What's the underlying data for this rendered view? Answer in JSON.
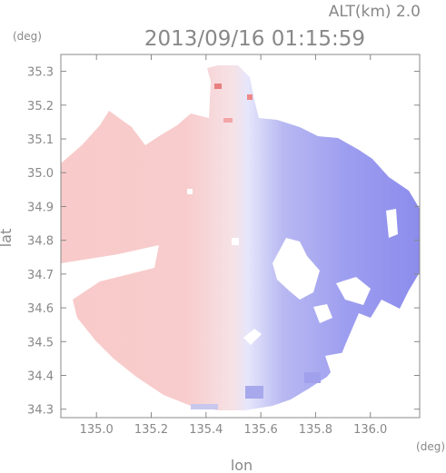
{
  "header": {
    "altitude_label": "ALT(km) 2.0",
    "timestamp": "2013/09/16 01:15:59"
  },
  "axes": {
    "y_unit": "(deg)",
    "x_unit": "(deg)",
    "xlabel": "lon",
    "ylabel": "lat",
    "x_ticks": [
      "135.0",
      "135.2",
      "135.4",
      "135.6",
      "135.8",
      "136.0"
    ],
    "y_ticks": [
      "35.3",
      "35.2",
      "35.1",
      "35.0",
      "34.9",
      "34.8",
      "34.7",
      "34.6",
      "34.5",
      "34.4",
      "34.3"
    ],
    "xlim": [
      134.87,
      136.18
    ],
    "ylim": [
      34.275,
      35.35
    ]
  },
  "colors": {
    "receding": "#f7c9c9",
    "approaching": "#8a8aee",
    "neutral": "#f2f2fb",
    "text": "#888888",
    "frame": "#888888"
  },
  "radar": {
    "center_lon": 135.53,
    "center_lat": 34.81
  }
}
